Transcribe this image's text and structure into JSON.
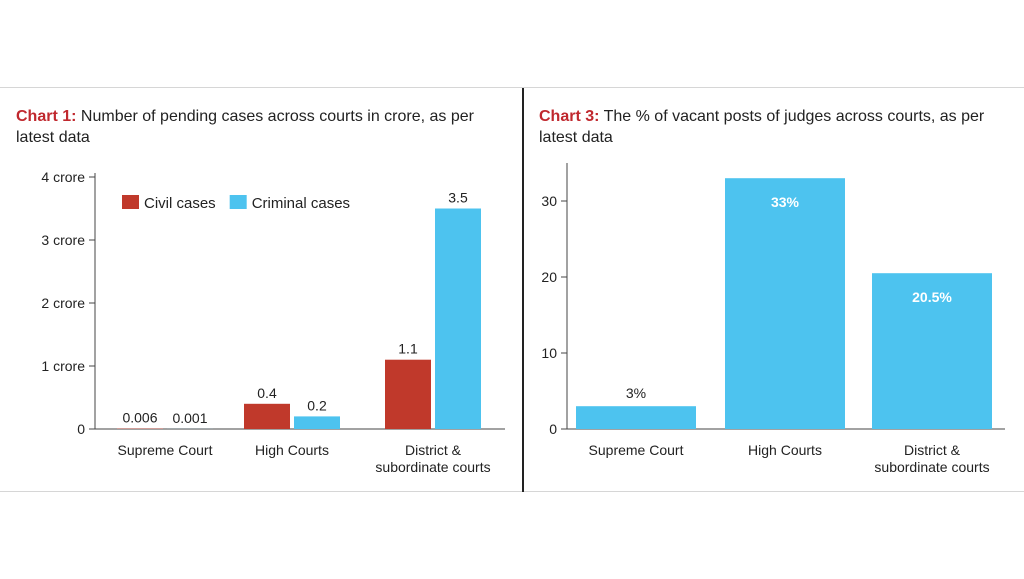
{
  "chart_data": [
    {
      "type": "bar",
      "title_lead": "Chart 1:",
      "title": "Number of pending cases across courts in crore, as per latest data",
      "categories": [
        [
          "Supreme Court"
        ],
        [
          "High Courts"
        ],
        [
          "District &",
          "subordinate courts"
        ]
      ],
      "y_ticks": [
        {
          "value": 0,
          "label": "0"
        },
        {
          "value": 1,
          "label": "1 crore"
        },
        {
          "value": 2,
          "label": "2 crore"
        },
        {
          "value": 3,
          "label": "3 crore"
        },
        {
          "value": 4,
          "label": "4 crore"
        }
      ],
      "ylim": [
        0,
        4
      ],
      "series": [
        {
          "name": "Civil cases",
          "color": "#c0392b",
          "values": [
            0.006,
            0.4,
            1.1
          ],
          "labels": [
            "0.006",
            "0.4",
            "1.1"
          ]
        },
        {
          "name": "Criminal cases",
          "color": "#4dc3ef",
          "values": [
            0.001,
            0.2,
            3.5
          ],
          "labels": [
            "0.001",
            "0.2",
            "3.5"
          ]
        }
      ],
      "legend": "top-left",
      "grid": false
    },
    {
      "type": "bar",
      "title_lead": "Chart 3:",
      "title": "The % of vacant posts of judges across courts, as per latest data",
      "categories": [
        [
          "Supreme Court"
        ],
        [
          "High Courts"
        ],
        [
          "District &",
          "subordinate courts"
        ]
      ],
      "y_ticks": [
        {
          "value": 0,
          "label": "0"
        },
        {
          "value": 10,
          "label": "10"
        },
        {
          "value": 20,
          "label": "20"
        },
        {
          "value": 30,
          "label": "30"
        }
      ],
      "ylim": [
        0,
        35
      ],
      "series": [
        {
          "color": "#4dc3ef",
          "values": [
            3,
            33,
            20.5
          ],
          "labels": [
            "3%",
            "33%",
            "20.5%"
          ]
        }
      ],
      "grid": false
    }
  ]
}
